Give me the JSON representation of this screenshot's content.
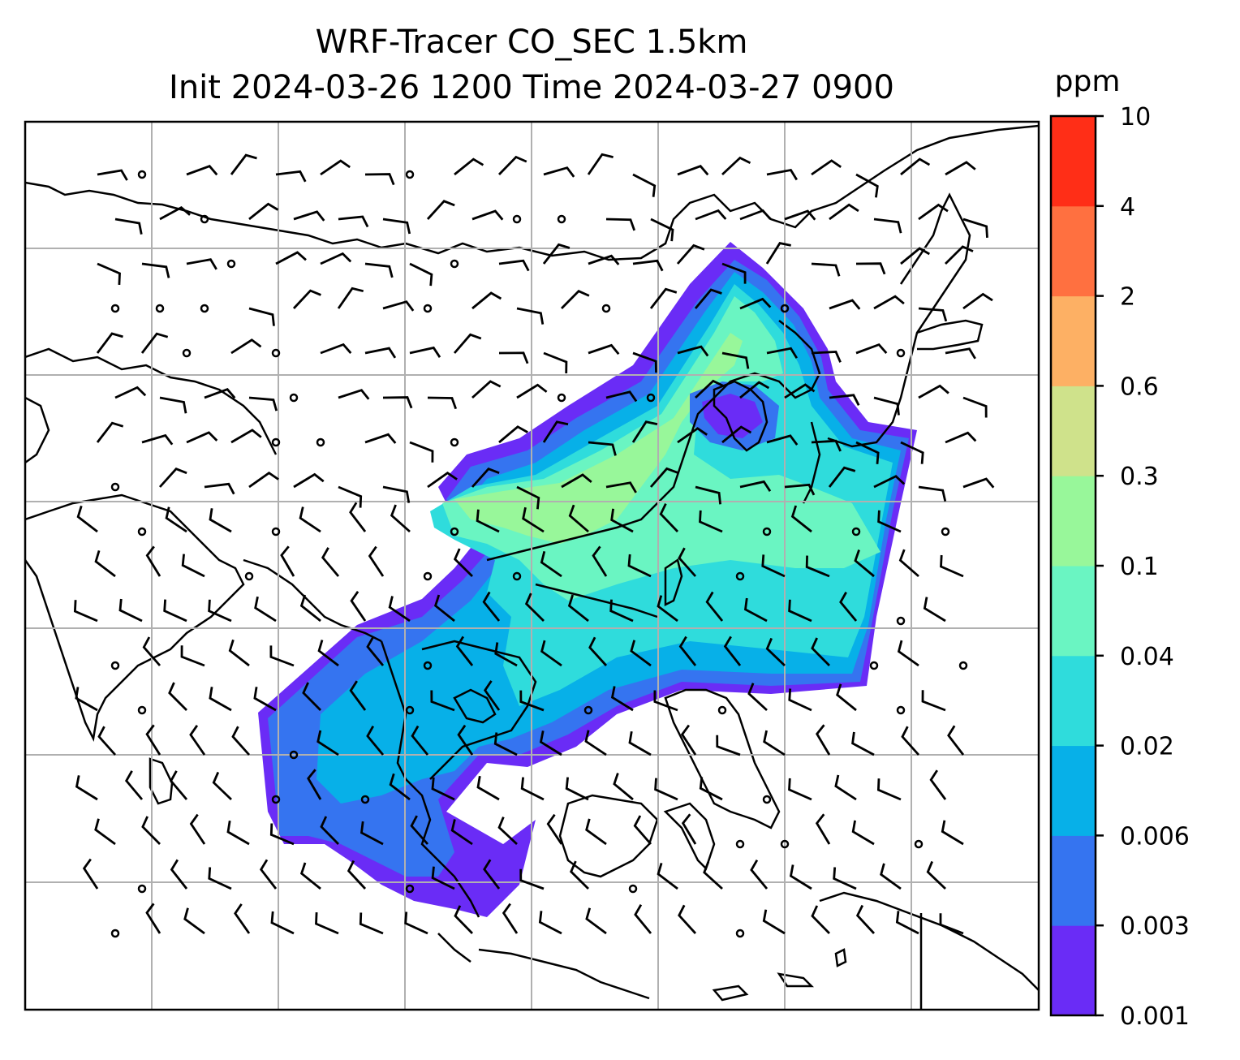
{
  "title": {
    "line1": "WRF-Tracer CO_SEC 1.5km",
    "line2": "Init 2024-03-26 1200 Time 2024-03-27 0900"
  },
  "chart_data": {
    "type": "heatmap",
    "title": "WRF-Tracer CO_SEC 1.5km",
    "subtitle": "Init 2024-03-26 1200 Time 2024-03-27 0900",
    "field": "CO_SEC tracer concentration",
    "grid": true,
    "overlay": "wind barbs",
    "colorbar": {
      "label": "ppm",
      "placement": "right",
      "levels": [
        "0.001",
        "0.003",
        "0.006",
        "0.02",
        "0.04",
        "0.1",
        "0.3",
        "0.6",
        "2",
        "4",
        "10"
      ],
      "colors": [
        "#6a2cf6",
        "#3574f0",
        "#07b0e8",
        "#2fdcdc",
        "#6af5c2",
        "#98f79a",
        "#cfe28b",
        "#fdb064",
        "#ff7040",
        "#ff2e17"
      ]
    }
  }
}
